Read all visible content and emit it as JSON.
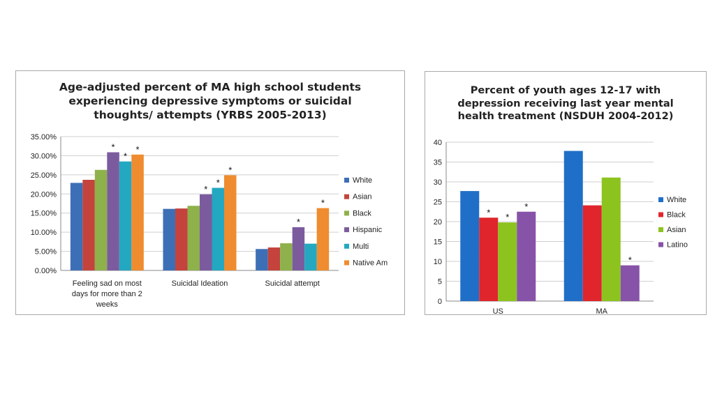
{
  "chart_data": [
    {
      "type": "bar",
      "title": "Age-adjusted percent of MA high school students experiencing depressive symptoms or suicidal thoughts/ attempts (YRBS 2005-2013)",
      "categories": [
        "Feeling sad on most days for more than 2 weeks",
        "Suicidal Ideation",
        "Suicidal attempt"
      ],
      "series": [
        {
          "name": "White",
          "values": [
            22.9,
            16.1,
            5.6
          ],
          "color": "#3d6fb6",
          "marks": [
            "",
            "",
            ""
          ]
        },
        {
          "name": "Asian",
          "values": [
            23.7,
            16.2,
            6.0
          ],
          "color": "#c4433c",
          "marks": [
            "",
            "",
            ""
          ]
        },
        {
          "name": "Black",
          "values": [
            26.3,
            16.9,
            7.1
          ],
          "color": "#8fb14b",
          "marks": [
            "",
            "",
            ""
          ]
        },
        {
          "name": "Hispanic",
          "values": [
            30.9,
            19.9,
            11.3
          ],
          "color": "#7b5a9e",
          "marks": [
            "*",
            "*",
            "*"
          ]
        },
        {
          "name": "Multi",
          "values": [
            28.5,
            21.6,
            7.0
          ],
          "color": "#24a7c1",
          "marks": [
            "*",
            "*",
            ""
          ]
        },
        {
          "name": "Native Am",
          "values": [
            30.3,
            24.9,
            16.3
          ],
          "color": "#ef8c2f",
          "marks": [
            "*",
            "*",
            "*"
          ]
        }
      ],
      "ylim": [
        0,
        35
      ],
      "yticks": [
        "0.00%",
        "5.00%",
        "10.00%",
        "15.00%",
        "20.00%",
        "25.00%",
        "30.00%",
        "35.00%"
      ],
      "grid": true,
      "legend": "right"
    },
    {
      "type": "bar",
      "title": "Percent of youth ages 12-17 with depression receiving last year mental health treatment (NSDUH 2004-2012)",
      "categories": [
        "US",
        "MA"
      ],
      "series": [
        {
          "name": "White",
          "values": [
            27.7,
            37.8
          ],
          "color": "#1f6fc9",
          "marks": [
            "",
            ""
          ]
        },
        {
          "name": "Black",
          "values": [
            21.0,
            24.1
          ],
          "color": "#e0262c",
          "marks": [
            "*",
            ""
          ]
        },
        {
          "name": "Asian",
          "values": [
            19.8,
            31.1
          ],
          "color": "#8cc31e",
          "marks": [
            "*",
            ""
          ]
        },
        {
          "name": "Latino",
          "values": [
            22.5,
            9.0
          ],
          "color": "#8653a8",
          "marks": [
            "*",
            "*"
          ]
        }
      ],
      "ylim": [
        0,
        40
      ],
      "yticks": [
        "0",
        "5",
        "10",
        "15",
        "20",
        "25",
        "30",
        "35",
        "40"
      ],
      "grid": true,
      "legend": "right"
    }
  ]
}
